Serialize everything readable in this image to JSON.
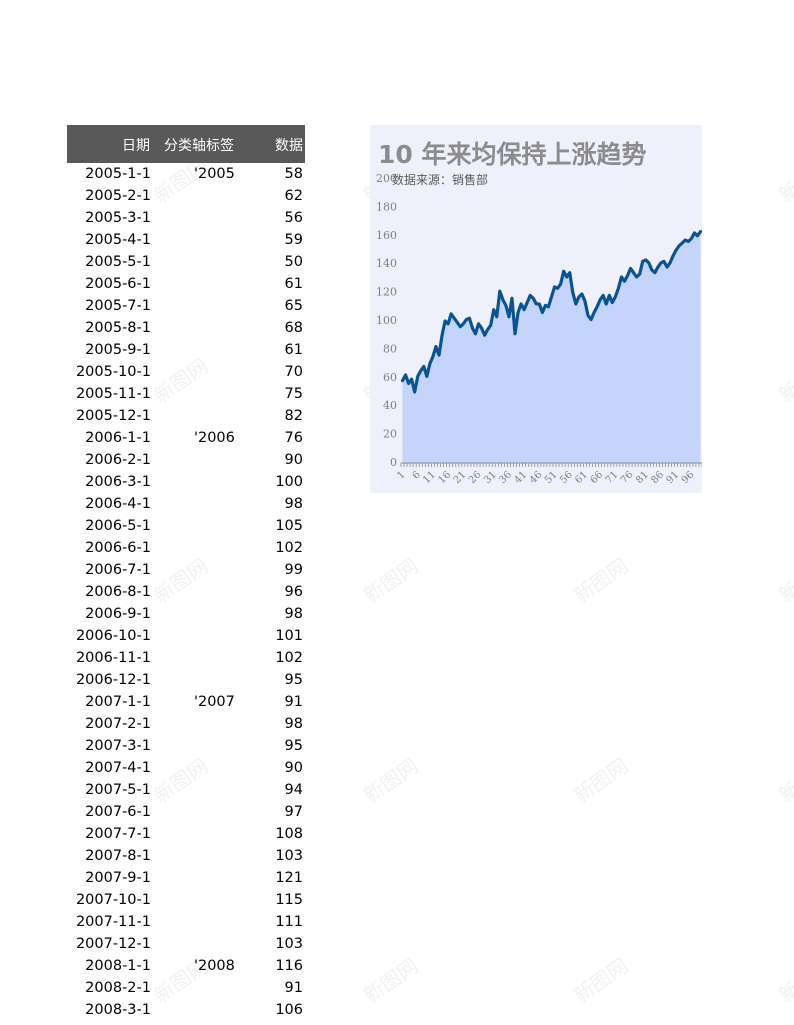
{
  "table": {
    "headers": [
      "日期",
      "分类轴标签",
      "数据"
    ],
    "rows": [
      {
        "date": "2005-1-1",
        "label": "'2005",
        "value": "58"
      },
      {
        "date": "2005-2-1",
        "label": "",
        "value": "62"
      },
      {
        "date": "2005-3-1",
        "label": "",
        "value": "56"
      },
      {
        "date": "2005-4-1",
        "label": "",
        "value": "59"
      },
      {
        "date": "2005-5-1",
        "label": "",
        "value": "50"
      },
      {
        "date": "2005-6-1",
        "label": "",
        "value": "61"
      },
      {
        "date": "2005-7-1",
        "label": "",
        "value": "65"
      },
      {
        "date": "2005-8-1",
        "label": "",
        "value": "68"
      },
      {
        "date": "2005-9-1",
        "label": "",
        "value": "61"
      },
      {
        "date": "2005-10-1",
        "label": "",
        "value": "70"
      },
      {
        "date": "2005-11-1",
        "label": "",
        "value": "75"
      },
      {
        "date": "2005-12-1",
        "label": "",
        "value": "82"
      },
      {
        "date": "2006-1-1",
        "label": "'2006",
        "value": "76"
      },
      {
        "date": "2006-2-1",
        "label": "",
        "value": "90"
      },
      {
        "date": "2006-3-1",
        "label": "",
        "value": "100"
      },
      {
        "date": "2006-4-1",
        "label": "",
        "value": "98"
      },
      {
        "date": "2006-5-1",
        "label": "",
        "value": "105"
      },
      {
        "date": "2006-6-1",
        "label": "",
        "value": "102"
      },
      {
        "date": "2006-7-1",
        "label": "",
        "value": "99"
      },
      {
        "date": "2006-8-1",
        "label": "",
        "value": "96"
      },
      {
        "date": "2006-9-1",
        "label": "",
        "value": "98"
      },
      {
        "date": "2006-10-1",
        "label": "",
        "value": "101"
      },
      {
        "date": "2006-11-1",
        "label": "",
        "value": "102"
      },
      {
        "date": "2006-12-1",
        "label": "",
        "value": "95"
      },
      {
        "date": "2007-1-1",
        "label": "'2007",
        "value": "91"
      },
      {
        "date": "2007-2-1",
        "label": "",
        "value": "98"
      },
      {
        "date": "2007-3-1",
        "label": "",
        "value": "95"
      },
      {
        "date": "2007-4-1",
        "label": "",
        "value": "90"
      },
      {
        "date": "2007-5-1",
        "label": "",
        "value": "94"
      },
      {
        "date": "2007-6-1",
        "label": "",
        "value": "97"
      },
      {
        "date": "2007-7-1",
        "label": "",
        "value": "108"
      },
      {
        "date": "2007-8-1",
        "label": "",
        "value": "103"
      },
      {
        "date": "2007-9-1",
        "label": "",
        "value": "121"
      },
      {
        "date": "2007-10-1",
        "label": "",
        "value": "115"
      },
      {
        "date": "2007-11-1",
        "label": "",
        "value": "111"
      },
      {
        "date": "2007-12-1",
        "label": "",
        "value": "103"
      },
      {
        "date": "2008-1-1",
        "label": "'2008",
        "value": "116"
      },
      {
        "date": "2008-2-1",
        "label": "",
        "value": "91"
      },
      {
        "date": "2008-3-1",
        "label": "",
        "value": "106"
      }
    ]
  },
  "watermark": "新图网",
  "chart_data": {
    "type": "area",
    "title": "10 年来均保持上涨趋势",
    "subtitle": "数据来源：销售部",
    "ylim": [
      0,
      200
    ],
    "yticks": [
      0,
      20,
      40,
      60,
      80,
      100,
      120,
      140,
      160,
      180,
      200
    ],
    "xticks": [
      "1",
      "6",
      "11",
      "16",
      "21",
      "26",
      "31",
      "36",
      "41",
      "46",
      "51",
      "56",
      "61",
      "66",
      "71",
      "76",
      "81",
      "86",
      "91",
      "96"
    ],
    "grid": false,
    "legend": "none",
    "colors": {
      "fill": "#c5d4fa",
      "line": "#0b5394",
      "background": "#eef0fc"
    },
    "x": [
      1,
      2,
      3,
      4,
      5,
      6,
      7,
      8,
      9,
      10,
      11,
      12,
      13,
      14,
      15,
      16,
      17,
      18,
      19,
      20,
      21,
      22,
      23,
      24,
      25,
      26,
      27,
      28,
      29,
      30,
      31,
      32,
      33,
      34,
      35,
      36,
      37,
      38,
      39,
      40,
      41,
      42,
      43,
      44,
      45,
      46,
      47,
      48,
      49,
      50,
      51,
      52,
      53,
      54,
      55,
      56,
      57,
      58,
      59,
      60,
      61,
      62,
      63,
      64,
      65,
      66,
      67,
      68,
      69,
      70,
      71,
      72,
      73,
      74,
      75,
      76,
      77,
      78,
      79,
      80,
      81,
      82,
      83,
      84,
      85,
      86,
      87,
      88,
      89,
      90,
      91,
      92,
      93,
      94,
      95,
      96,
      97,
      98,
      99
    ],
    "values": [
      58,
      62,
      56,
      59,
      50,
      61,
      65,
      68,
      61,
      70,
      75,
      82,
      76,
      90,
      100,
      98,
      105,
      102,
      99,
      96,
      98,
      101,
      102,
      95,
      91,
      98,
      95,
      90,
      94,
      97,
      108,
      103,
      121,
      115,
      111,
      103,
      116,
      91,
      106,
      112,
      108,
      113,
      118,
      116,
      112,
      112,
      106,
      111,
      110,
      117,
      124,
      123,
      126,
      135,
      131,
      134,
      120,
      112,
      117,
      119,
      114,
      104,
      101,
      106,
      110,
      115,
      118,
      112,
      118,
      113,
      117,
      123,
      131,
      128,
      132,
      137,
      134,
      131,
      133,
      142,
      143,
      141,
      136,
      134,
      138,
      141,
      142,
      138,
      141,
      146,
      150,
      153,
      155,
      157,
      156,
      158,
      162,
      160,
      163
    ]
  }
}
